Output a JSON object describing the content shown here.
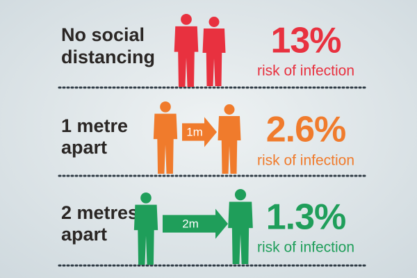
{
  "rows": [
    {
      "label": [
        "No social",
        "distancing"
      ],
      "value": "13%",
      "caption": "risk of infection",
      "color": "#e8313f"
    },
    {
      "label": [
        "1 metre",
        "apart"
      ],
      "distance": "1m",
      "value": "2.6%",
      "caption": "risk of infection",
      "color": "#f07b2c"
    },
    {
      "label": [
        "2 metres",
        "apart"
      ],
      "distance": "2m",
      "value": "1.3%",
      "caption": "risk of infection",
      "color": "#1f9e5a"
    }
  ]
}
